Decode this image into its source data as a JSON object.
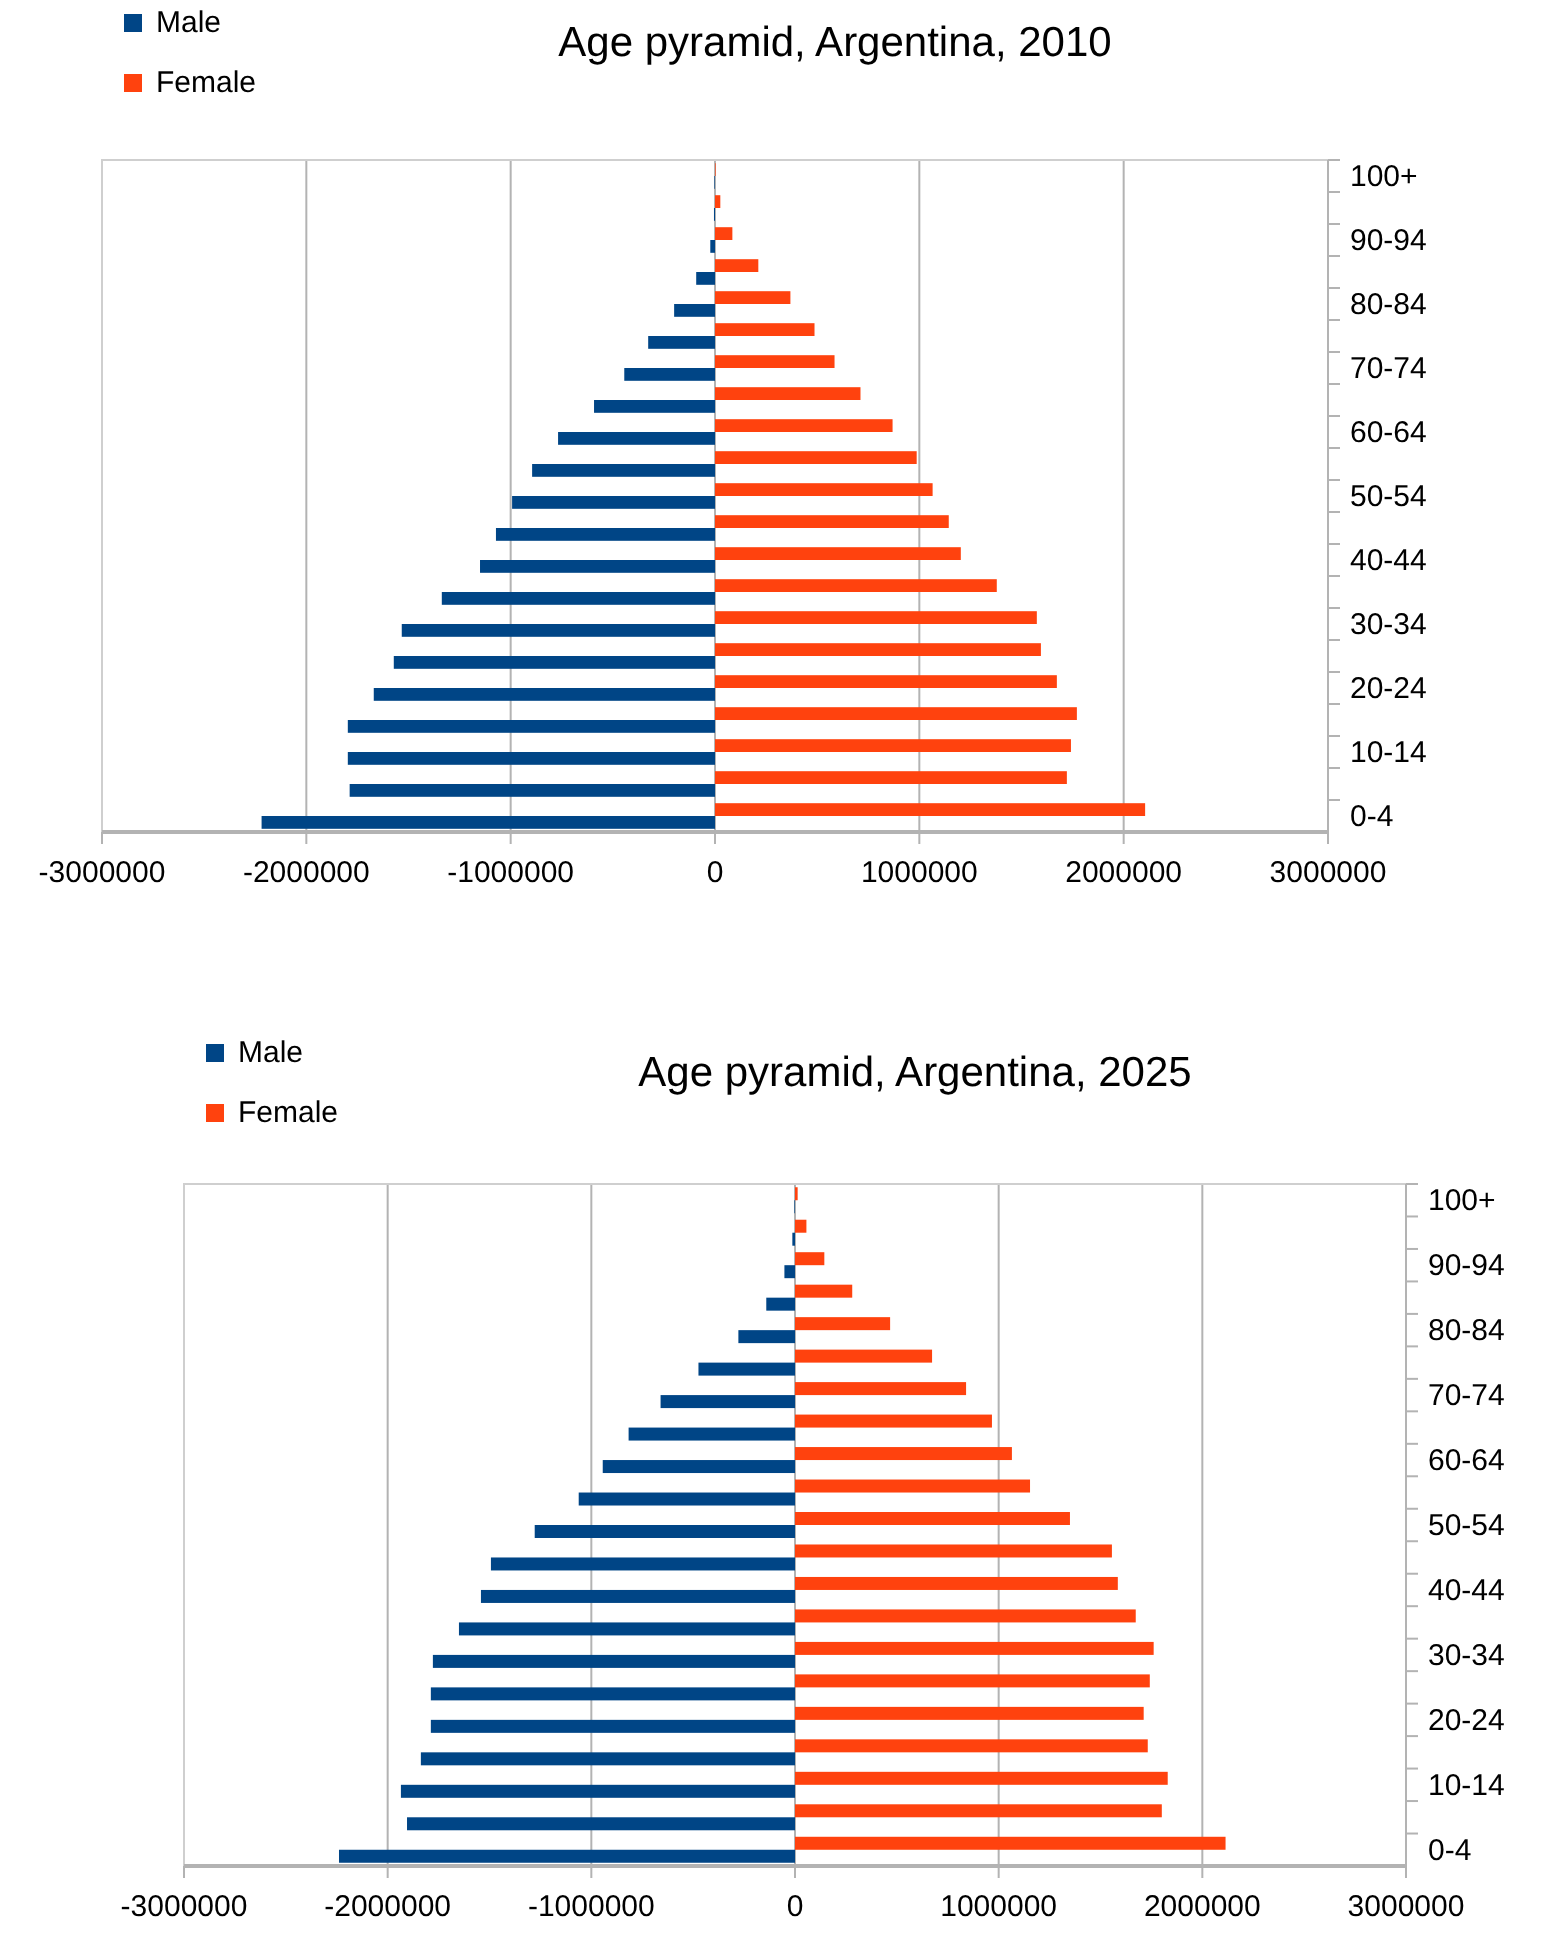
{
  "chart_data": [
    {
      "type": "bar",
      "title": "Age pyramid, Argentina, 2010",
      "orientation": "horizontal",
      "categories": [
        "100+",
        null,
        "90-94",
        null,
        "80-84",
        null,
        "70-74",
        null,
        "60-64",
        null,
        "50-54",
        null,
        "40-44",
        null,
        "30-34",
        null,
        "20-24",
        null,
        "10-14",
        null,
        "0-4"
      ],
      "series": [
        {
          "name": "Male",
          "color": "#004586",
          "values": [
            -3000,
            -5000,
            -23000,
            -92000,
            -200000,
            -327000,
            -444000,
            -592000,
            -768000,
            -895000,
            -993000,
            -1072000,
            -1150000,
            -1337000,
            -1533000,
            -1572000,
            -1670000,
            -1797000,
            -1797000,
            -1788000,
            -2219000
          ]
        },
        {
          "name": "Female",
          "color": "#ff420e",
          "values": [
            3000,
            26000,
            85000,
            212000,
            369000,
            487000,
            585000,
            712000,
            869000,
            987000,
            1065000,
            1144000,
            1203000,
            1379000,
            1575000,
            1595000,
            1673000,
            1771000,
            1742000,
            1722000,
            2105000
          ]
        }
      ],
      "xlim": [
        -3000000,
        3000000
      ],
      "xticks": [
        -3000000,
        -2000000,
        -1000000,
        0,
        1000000,
        2000000,
        3000000
      ],
      "grid": "x",
      "legend": "top left"
    },
    {
      "type": "bar",
      "title": "Age pyramid, Argentina, 2025",
      "orientation": "horizontal",
      "categories": [
        "100+",
        null,
        "90-94",
        null,
        "80-84",
        null,
        "70-74",
        null,
        "60-64",
        null,
        "50-54",
        null,
        "40-44",
        null,
        "30-34",
        null,
        "20-24",
        null,
        "10-14",
        null,
        "0-4"
      ],
      "series": [
        {
          "name": "Male",
          "color": "#004586",
          "values": [
            -3000,
            -13000,
            -52000,
            -141000,
            -278000,
            -474000,
            -660000,
            -817000,
            -944000,
            -1062000,
            -1278000,
            -1493000,
            -1542000,
            -1650000,
            -1778000,
            -1788000,
            -1788000,
            -1837000,
            -1935000,
            -1905000,
            -2239000
          ]
        },
        {
          "name": "Female",
          "color": "#ff420e",
          "values": [
            13000,
            56000,
            144000,
            281000,
            467000,
            673000,
            840000,
            967000,
            1065000,
            1154000,
            1350000,
            1556000,
            1585000,
            1673000,
            1761000,
            1742000,
            1712000,
            1732000,
            1830000,
            1801000,
            2114000
          ]
        }
      ],
      "xlim": [
        -3000000,
        3000000
      ],
      "xticks": [
        -3000000,
        -2000000,
        -1000000,
        0,
        1000000,
        2000000,
        3000000
      ],
      "grid": "x",
      "legend": "top left"
    }
  ]
}
